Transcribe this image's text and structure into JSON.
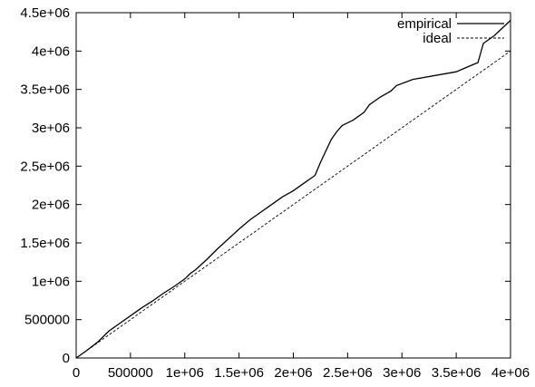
{
  "chart_data": {
    "type": "line",
    "title": "",
    "xlabel": "",
    "ylabel": "",
    "xlim": [
      0,
      4000000
    ],
    "ylim": [
      0,
      4500000
    ],
    "x_ticks": [
      0,
      500000,
      1000000,
      1500000,
      2000000,
      2500000,
      3000000,
      3500000,
      4000000
    ],
    "x_tick_labels": [
      "0",
      "500000",
      "1e+06",
      "1.5e+06",
      "2e+06",
      "2.5e+06",
      "3e+06",
      "3.5e+06",
      "4e+06"
    ],
    "y_ticks": [
      0,
      500000,
      1000000,
      1500000,
      2000000,
      2500000,
      3000000,
      3500000,
      4000000,
      4500000
    ],
    "y_tick_labels": [
      "0",
      "500000",
      "1e+06",
      "1.5e+06",
      "2e+06",
      "2.5e+06",
      "3e+06",
      "3.5e+06",
      "4e+06",
      "4.5e+06"
    ],
    "grid": false,
    "legend_position": "top-right",
    "series": [
      {
        "name": "empirical",
        "style": "solid",
        "color": "#000000",
        "points": [
          [
            0,
            0
          ],
          [
            100000,
            100000
          ],
          [
            200000,
            210000
          ],
          [
            300000,
            350000
          ],
          [
            400000,
            450000
          ],
          [
            500000,
            550000
          ],
          [
            600000,
            650000
          ],
          [
            700000,
            740000
          ],
          [
            800000,
            840000
          ],
          [
            900000,
            930000
          ],
          [
            1000000,
            1030000
          ],
          [
            1050000,
            1100000
          ],
          [
            1100000,
            1150000
          ],
          [
            1200000,
            1280000
          ],
          [
            1300000,
            1420000
          ],
          [
            1400000,
            1550000
          ],
          [
            1500000,
            1680000
          ],
          [
            1600000,
            1800000
          ],
          [
            1700000,
            1900000
          ],
          [
            1800000,
            2000000
          ],
          [
            1900000,
            2100000
          ],
          [
            2000000,
            2180000
          ],
          [
            2100000,
            2280000
          ],
          [
            2200000,
            2380000
          ],
          [
            2250000,
            2550000
          ],
          [
            2300000,
            2700000
          ],
          [
            2350000,
            2850000
          ],
          [
            2400000,
            2950000
          ],
          [
            2450000,
            3030000
          ],
          [
            2550000,
            3100000
          ],
          [
            2650000,
            3200000
          ],
          [
            2700000,
            3300000
          ],
          [
            2800000,
            3400000
          ],
          [
            2900000,
            3480000
          ],
          [
            2950000,
            3550000
          ],
          [
            3100000,
            3630000
          ],
          [
            3500000,
            3730000
          ],
          [
            3700000,
            3850000
          ],
          [
            3750000,
            4100000
          ],
          [
            3850000,
            4200000
          ],
          [
            4000000,
            4400000
          ]
        ]
      },
      {
        "name": "ideal",
        "style": "dashed",
        "color": "#000000",
        "points": [
          [
            0,
            0
          ],
          [
            4000000,
            4000000
          ]
        ]
      }
    ]
  }
}
